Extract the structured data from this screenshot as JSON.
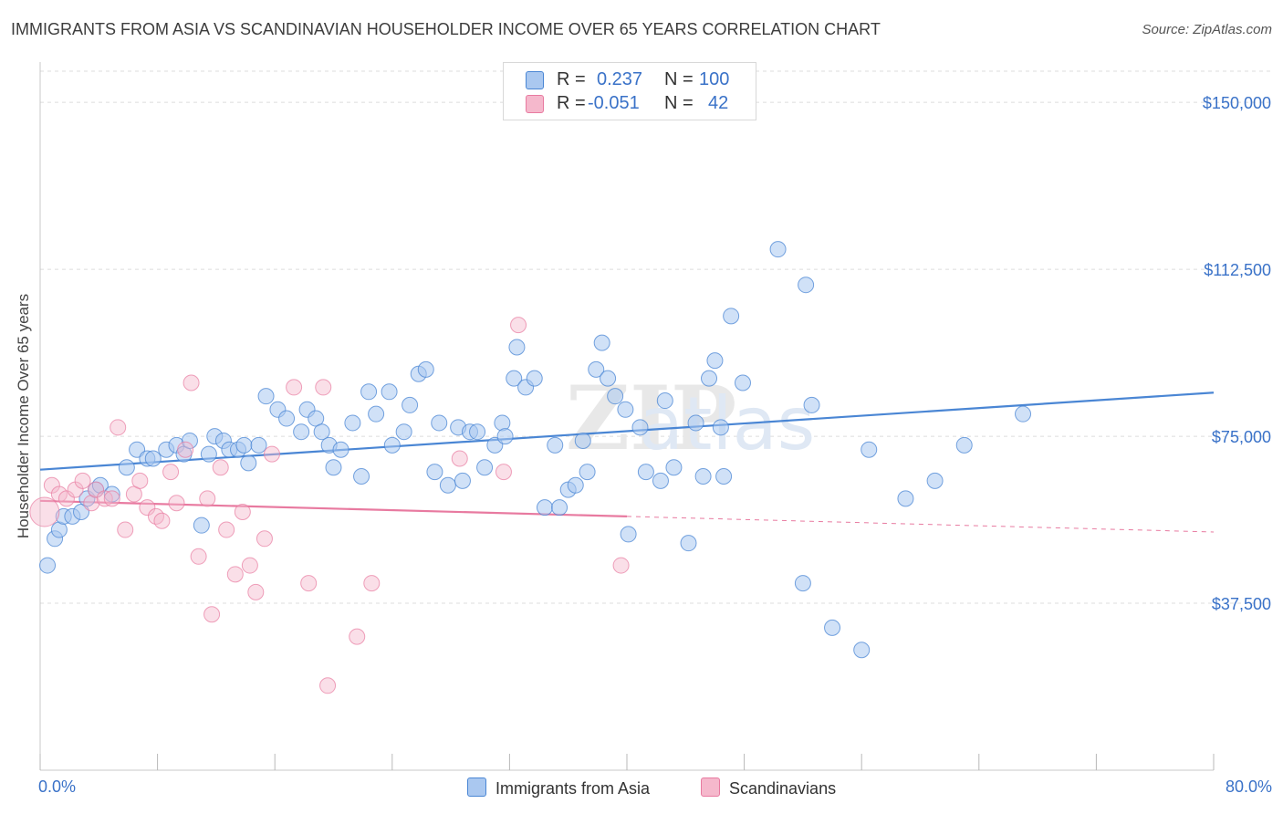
{
  "header": {
    "title": "IMMIGRANTS FROM ASIA VS SCANDINAVIAN HOUSEHOLDER INCOME OVER 65 YEARS CORRELATION CHART",
    "source": "Source: ZipAtlas.com"
  },
  "watermark": "ZIPatlas",
  "legend_top": {
    "rows": [
      {
        "r_label": "R =",
        "r_value": "0.237",
        "n_label": "N =",
        "n_value": "100",
        "color": "#aac8f0"
      },
      {
        "r_label": "R =",
        "r_value": "-0.051",
        "n_label": "N =",
        "n_value": "42",
        "color": "#f5b8cc"
      }
    ]
  },
  "legend_bottom": {
    "items": [
      {
        "label": "Immigrants from Asia",
        "color": "#aac8f0"
      },
      {
        "label": "Scandinavians",
        "color": "#f5b8cc"
      }
    ]
  },
  "chart_data": {
    "type": "scatter",
    "title": "IMMIGRANTS FROM ASIA VS SCANDINAVIAN HOUSEHOLDER INCOME OVER 65 YEARS CORRELATION CHART",
    "ylabel": "Householder Income Over 65 years",
    "xlabel": "",
    "x_tick_labels": [
      "0.0%",
      "80.0%"
    ],
    "y_tick_labels": [
      "$150,000",
      "$112,500",
      "$75,000",
      "$37,500"
    ],
    "y_ticks": [
      150000,
      112500,
      75000,
      37500
    ],
    "xlim": [
      0,
      80
    ],
    "ylim": [
      0,
      157000
    ],
    "grid": true,
    "legend_position": "top-center",
    "colors": {
      "asia": "#4a86d4",
      "asia_fill": "#aac8f0",
      "scand": "#e87aa0",
      "scand_fill": "#f5b8cc"
    },
    "series": [
      {
        "name": "Immigrants from Asia",
        "trend": {
          "x0": 0,
          "y0": 67500,
          "x1": 80,
          "y1": 84800
        },
        "points": [
          [
            0.5,
            46000
          ],
          [
            1.0,
            52000
          ],
          [
            1.3,
            54000
          ],
          [
            1.6,
            57000
          ],
          [
            2.2,
            57000
          ],
          [
            2.8,
            58000
          ],
          [
            3.2,
            61000
          ],
          [
            3.8,
            63000
          ],
          [
            4.1,
            64000
          ],
          [
            4.9,
            62000
          ],
          [
            5.9,
            68000
          ],
          [
            6.6,
            72000
          ],
          [
            7.3,
            70000
          ],
          [
            7.7,
            70000
          ],
          [
            8.6,
            72000
          ],
          [
            9.3,
            73000
          ],
          [
            9.8,
            71000
          ],
          [
            10.2,
            74000
          ],
          [
            11.0,
            55000
          ],
          [
            11.5,
            71000
          ],
          [
            11.9,
            75000
          ],
          [
            12.5,
            74000
          ],
          [
            12.9,
            72000
          ],
          [
            13.5,
            72000
          ],
          [
            13.9,
            73000
          ],
          [
            14.2,
            69000
          ],
          [
            14.9,
            73000
          ],
          [
            15.4,
            84000
          ],
          [
            16.2,
            81000
          ],
          [
            16.8,
            79000
          ],
          [
            17.8,
            76000
          ],
          [
            18.2,
            81000
          ],
          [
            18.8,
            79000
          ],
          [
            19.2,
            76000
          ],
          [
            19.7,
            73000
          ],
          [
            20.0,
            68000
          ],
          [
            20.5,
            72000
          ],
          [
            21.3,
            78000
          ],
          [
            21.9,
            66000
          ],
          [
            22.4,
            85000
          ],
          [
            22.9,
            80000
          ],
          [
            23.8,
            85000
          ],
          [
            24.0,
            73000
          ],
          [
            24.8,
            76000
          ],
          [
            25.2,
            82000
          ],
          [
            25.8,
            89000
          ],
          [
            26.3,
            90000
          ],
          [
            26.9,
            67000
          ],
          [
            27.2,
            78000
          ],
          [
            27.8,
            64000
          ],
          [
            28.5,
            77000
          ],
          [
            28.8,
            65000
          ],
          [
            29.3,
            76000
          ],
          [
            29.8,
            76000
          ],
          [
            30.3,
            68000
          ],
          [
            31.0,
            73000
          ],
          [
            31.5,
            78000
          ],
          [
            31.7,
            75000
          ],
          [
            32.3,
            88000
          ],
          [
            32.5,
            95000
          ],
          [
            33.1,
            86000
          ],
          [
            33.7,
            88000
          ],
          [
            34.4,
            59000
          ],
          [
            35.1,
            73000
          ],
          [
            35.4,
            59000
          ],
          [
            36.0,
            63000
          ],
          [
            36.5,
            64000
          ],
          [
            37.0,
            74000
          ],
          [
            37.3,
            67000
          ],
          [
            37.9,
            90000
          ],
          [
            38.3,
            96000
          ],
          [
            38.7,
            88000
          ],
          [
            39.2,
            84000
          ],
          [
            39.9,
            81000
          ],
          [
            40.1,
            53000
          ],
          [
            40.9,
            77000
          ],
          [
            41.3,
            67000
          ],
          [
            42.3,
            65000
          ],
          [
            42.6,
            83000
          ],
          [
            43.2,
            68000
          ],
          [
            44.2,
            51000
          ],
          [
            44.7,
            78000
          ],
          [
            45.2,
            66000
          ],
          [
            45.6,
            88000
          ],
          [
            46.0,
            92000
          ],
          [
            46.4,
            77000
          ],
          [
            46.6,
            66000
          ],
          [
            47.1,
            102000
          ],
          [
            47.9,
            87000
          ],
          [
            50.3,
            117000
          ],
          [
            52.2,
            109000
          ],
          [
            52.6,
            82000
          ],
          [
            52.0,
            42000
          ],
          [
            54.0,
            32000
          ],
          [
            56.0,
            27000
          ],
          [
            56.5,
            72000
          ],
          [
            59.0,
            61000
          ],
          [
            61.0,
            65000
          ],
          [
            63.0,
            73000
          ],
          [
            67.0,
            80000
          ]
        ]
      },
      {
        "name": "Scandinavians",
        "trend": {
          "x0": 0,
          "y0": 60500,
          "x1": 40,
          "y1": 57000,
          "x_dash_end": 80,
          "y_dash_end": 53500
        },
        "points": [
          [
            0.3,
            58000
          ],
          [
            0.8,
            64000
          ],
          [
            1.3,
            62000
          ],
          [
            1.8,
            61000
          ],
          [
            2.4,
            63000
          ],
          [
            2.9,
            65000
          ],
          [
            3.5,
            60000
          ],
          [
            3.8,
            63000
          ],
          [
            4.4,
            61000
          ],
          [
            4.9,
            61000
          ],
          [
            5.3,
            77000
          ],
          [
            5.8,
            54000
          ],
          [
            6.4,
            62000
          ],
          [
            6.8,
            65000
          ],
          [
            7.3,
            59000
          ],
          [
            7.9,
            57000
          ],
          [
            8.3,
            56000
          ],
          [
            8.9,
            67000
          ],
          [
            9.3,
            60000
          ],
          [
            9.9,
            72000
          ],
          [
            10.3,
            87000
          ],
          [
            10.8,
            48000
          ],
          [
            11.4,
            61000
          ],
          [
            11.7,
            35000
          ],
          [
            12.3,
            68000
          ],
          [
            12.7,
            54000
          ],
          [
            13.3,
            44000
          ],
          [
            13.8,
            58000
          ],
          [
            14.3,
            46000
          ],
          [
            14.7,
            40000
          ],
          [
            15.3,
            52000
          ],
          [
            15.8,
            71000
          ],
          [
            17.3,
            86000
          ],
          [
            18.3,
            42000
          ],
          [
            19.3,
            86000
          ],
          [
            19.6,
            19000
          ],
          [
            21.6,
            30000
          ],
          [
            22.6,
            42000
          ],
          [
            28.6,
            70000
          ],
          [
            31.6,
            67000
          ],
          [
            32.6,
            100000
          ],
          [
            39.6,
            46000
          ]
        ]
      }
    ]
  }
}
